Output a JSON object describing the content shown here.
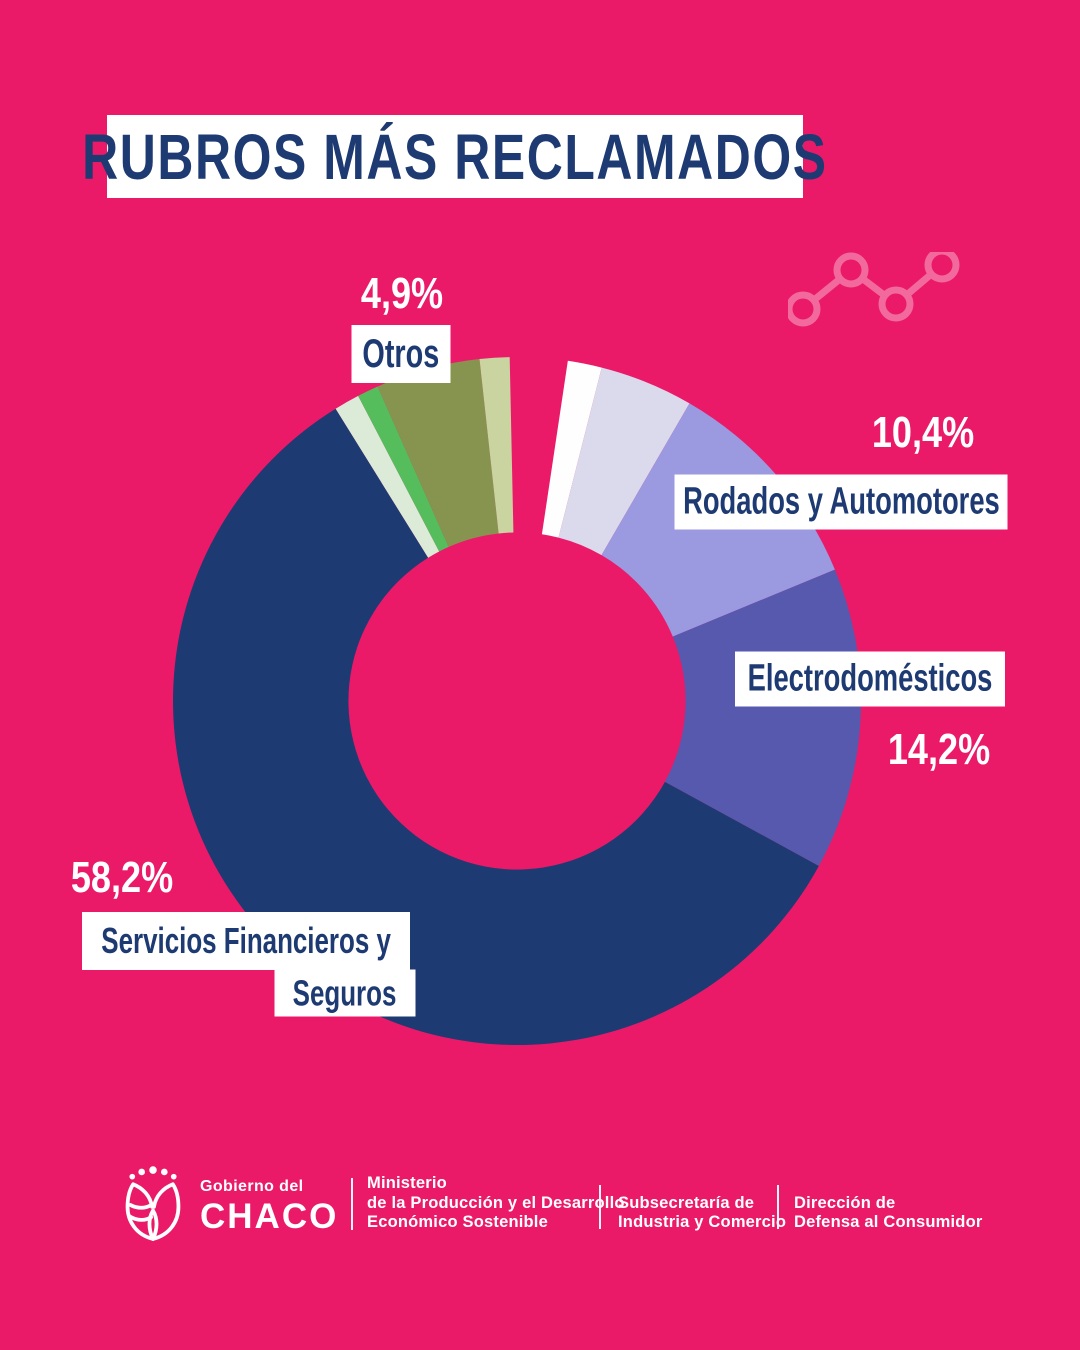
{
  "page": {
    "colors": {
      "bg-pink": "#EB1A69",
      "navy": "#1E3A72",
      "white": "#FFFFFF",
      "light-pink": "#F2699E"
    }
  },
  "title": {
    "text": "RUBROS MÁS RECLAMADOS"
  },
  "chart_data": {
    "type": "donut",
    "title": "RUBROS MÁS RECLAMADOS",
    "start_angle_deg": 8.5,
    "inner_radius_ratio": 0.49,
    "legend": "none",
    "note": "values are percentages; unlabeled small slices estimated from arc angles",
    "slices": [
      {
        "label": "",
        "value": 1.6,
        "display_value": "",
        "color": "#FEFEFE"
      },
      {
        "label": "",
        "value": 4.4,
        "display_value": "",
        "color": "#DBD9EC"
      },
      {
        "label": "Rodados y Automotores",
        "value": 10.4,
        "display_value": "10,4%",
        "color": "#9B99E0"
      },
      {
        "label": "Electrodomésticos",
        "value": 14.2,
        "display_value": "14,2%",
        "color": "#5659AD"
      },
      {
        "label": "Servicios Financieros y Seguros",
        "value": 58.2,
        "display_value": "58,2%",
        "color": "#1E3A72"
      },
      {
        "label": "",
        "value": 1.2,
        "display_value": "",
        "color": "#DCEAD8"
      },
      {
        "label": "",
        "value": 1.0,
        "display_value": "",
        "color": "#55BD5C"
      },
      {
        "label": "Otros",
        "value": 4.9,
        "display_value": "4,9%",
        "color": "#879450"
      },
      {
        "label": "",
        "value": 1.4,
        "display_value": "",
        "color": "#C9D4A0"
      }
    ]
  },
  "callouts": {
    "servicios_line1": "Servicios Financieros y",
    "servicios_line2": "Seguros"
  },
  "footer": {
    "logo": {
      "top_text": "Gobierno del",
      "main_text": "CHACO"
    },
    "columns": [
      {
        "lines": [
          "Ministerio",
          "de la Producción y el Desarrollo",
          "Económico Sostenible"
        ]
      },
      {
        "lines": [
          "Subsecretaría de",
          "Industria y Comercio"
        ]
      },
      {
        "lines": [
          "Dirección de",
          "Defensa al Consumidor"
        ]
      }
    ]
  }
}
